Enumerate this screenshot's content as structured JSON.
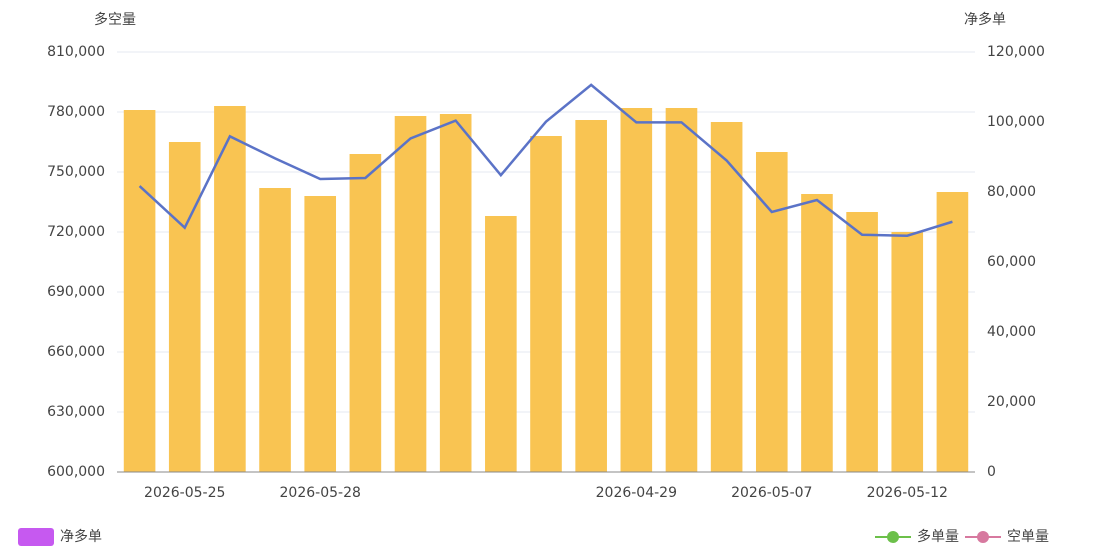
{
  "chart_data": {
    "type": "bar_line",
    "ylabel": "多空量",
    "y2label": "净多单",
    "categories": [
      null,
      "2026-05-25",
      null,
      null,
      "2026-05-28",
      null,
      null,
      null,
      null,
      null,
      null,
      "2026-04-29",
      null,
      null,
      "2026-05-07",
      null,
      null,
      "2026-05-12",
      null
    ],
    "series": [
      {
        "type": "bar",
        "color": "#f9c452",
        "values": [
          781000,
          765000,
          783000,
          742000,
          738000,
          759000,
          778000,
          779000,
          728000,
          768000,
          776000,
          782000,
          782000,
          775000,
          760000,
          739000,
          730000,
          720000,
          740000
        ]
      },
      {
        "type": "line",
        "axis": "y2",
        "color": "#5b73c7",
        "values": [
          81700,
          69800,
          95900,
          89600,
          83700,
          84000,
          95300,
          100400,
          84800,
          100100,
          110600,
          99900,
          99900,
          89000,
          74300,
          77700,
          67800,
          67500,
          71500
        ]
      }
    ],
    "ylim": [
      600000,
      810000
    ],
    "yticks": [
      {
        "value": 600000,
        "label": "600,000"
      },
      {
        "value": 630000,
        "label": "630,000"
      },
      {
        "value": 660000,
        "label": "660,000"
      },
      {
        "value": 690000,
        "label": "690,000"
      },
      {
        "value": 720000,
        "label": "720,000"
      },
      {
        "value": 750000,
        "label": "750,000"
      },
      {
        "value": 780000,
        "label": "780,000"
      },
      {
        "value": 810000,
        "label": "810,000"
      }
    ],
    "y2lim": [
      0,
      120000
    ],
    "y2ticks": [
      0,
      {
        "value": 20000,
        "label": "20,000"
      },
      {
        "value": 40000,
        "label": "40,000"
      },
      {
        "value": 60000,
        "label": "60,000"
      },
      {
        "value": 80000,
        "label": "80,000"
      },
      {
        "value": 100000,
        "label": "100,000"
      },
      {
        "value": 120000,
        "label": "120,000"
      }
    ],
    "grid": true,
    "legend": [
      {
        "name": "净多单",
        "color": "#c659f0",
        "shape": "rect"
      },
      {
        "name": "多单量",
        "color": "#6cc04a",
        "shape": "line"
      },
      {
        "name": "空单量",
        "color": "#d7799f",
        "shape": "line"
      }
    ]
  }
}
